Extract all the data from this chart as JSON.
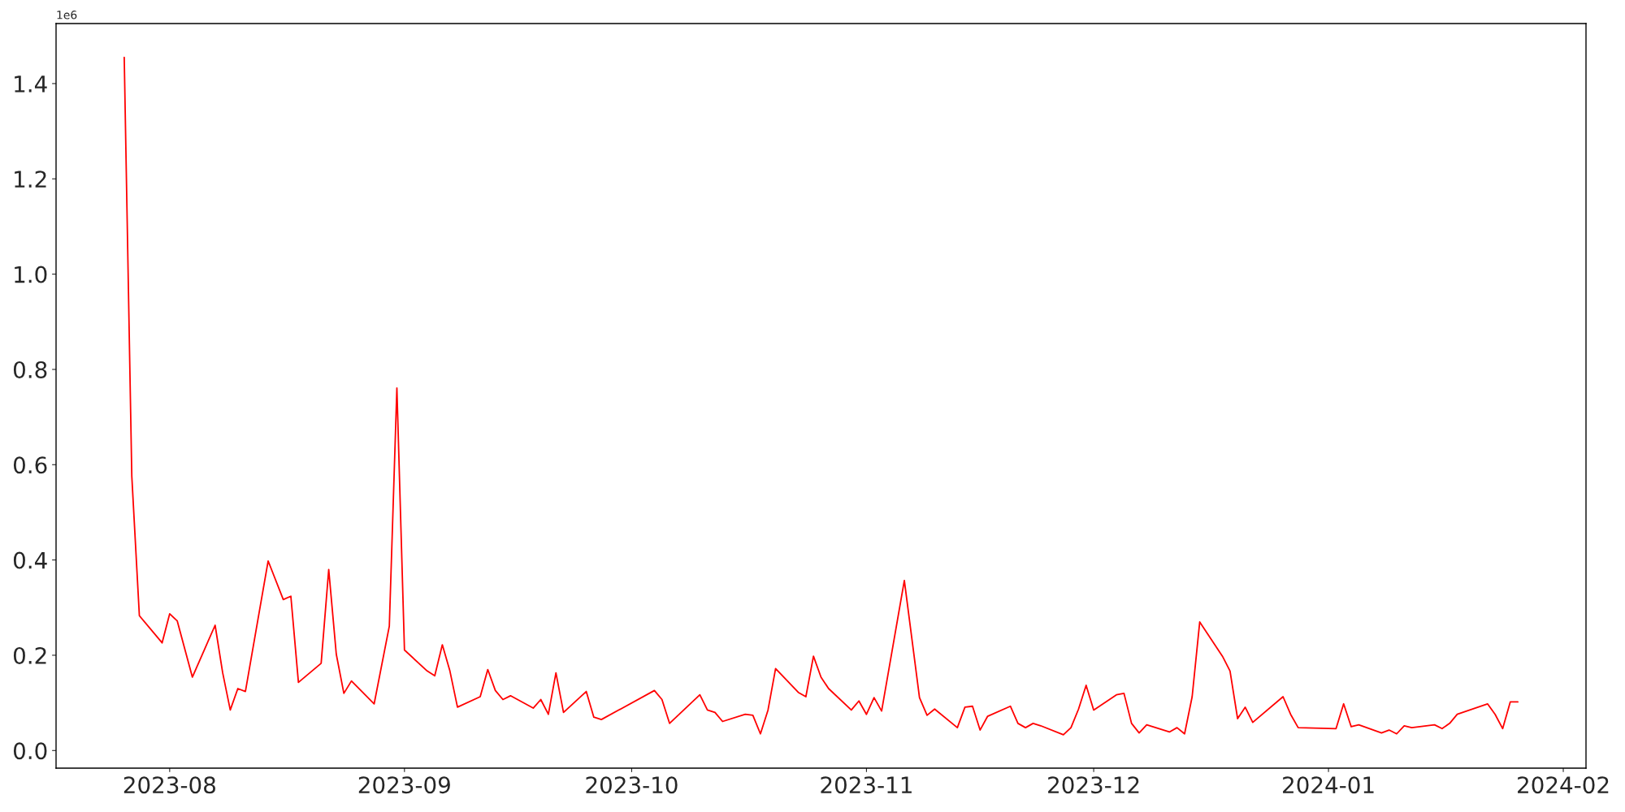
{
  "chart_data": {
    "type": "line",
    "annotations": [
      "1e6"
    ],
    "x": [
      "2023-07-26",
      "2023-07-27",
      "2023-07-28",
      "2023-07-31",
      "2023-08-01",
      "2023-08-02",
      "2023-08-04",
      "2023-08-07",
      "2023-08-08",
      "2023-08-09",
      "2023-08-10",
      "2023-08-11",
      "2023-08-14",
      "2023-08-16",
      "2023-08-17",
      "2023-08-18",
      "2023-08-21",
      "2023-08-22",
      "2023-08-23",
      "2023-08-24",
      "2023-08-25",
      "2023-08-28",
      "2023-08-30",
      "2023-08-31",
      "2023-09-01",
      "2023-09-04",
      "2023-09-05",
      "2023-09-06",
      "2023-09-07",
      "2023-09-08",
      "2023-09-11",
      "2023-09-12",
      "2023-09-13",
      "2023-09-14",
      "2023-09-15",
      "2023-09-18",
      "2023-09-19",
      "2023-09-20",
      "2023-09-21",
      "2023-09-22",
      "2023-09-25",
      "2023-09-26",
      "2023-09-27",
      "2023-10-04",
      "2023-10-05",
      "2023-10-06",
      "2023-10-10",
      "2023-10-11",
      "2023-10-12",
      "2023-10-13",
      "2023-10-16",
      "2023-10-17",
      "2023-10-18",
      "2023-10-19",
      "2023-10-20",
      "2023-10-23",
      "2023-10-24",
      "2023-10-25",
      "2023-10-26",
      "2023-10-27",
      "2023-10-30",
      "2023-10-31",
      "2023-11-01",
      "2023-11-02",
      "2023-11-03",
      "2023-11-06",
      "2023-11-08",
      "2023-11-09",
      "2023-11-10",
      "2023-11-13",
      "2023-11-14",
      "2023-11-15",
      "2023-11-16",
      "2023-11-17",
      "2023-11-20",
      "2023-11-21",
      "2023-11-22",
      "2023-11-23",
      "2023-11-24",
      "2023-11-27",
      "2023-11-28",
      "2023-11-29",
      "2023-11-30",
      "2023-12-01",
      "2023-12-04",
      "2023-12-05",
      "2023-12-06",
      "2023-12-07",
      "2023-12-08",
      "2023-12-11",
      "2023-12-12",
      "2023-12-13",
      "2023-12-14",
      "2023-12-15",
      "2023-12-18",
      "2023-12-19",
      "2023-12-20",
      "2023-12-21",
      "2023-12-22",
      "2023-12-26",
      "2023-12-27",
      "2023-12-28",
      "2024-01-02",
      "2024-01-03",
      "2024-01-04",
      "2024-01-05",
      "2024-01-08",
      "2024-01-09",
      "2024-01-10",
      "2024-01-11",
      "2024-01-12",
      "2024-01-15",
      "2024-01-16",
      "2024-01-17",
      "2024-01-18",
      "2024-01-22",
      "2024-01-23",
      "2024-01-24",
      "2024-01-25",
      "2024-01-26"
    ],
    "series": [
      {
        "color": "#ff0000",
        "values": [
          1.455,
          0.576,
          0.283,
          0.226,
          0.287,
          0.272,
          0.154,
          0.263,
          0.163,
          0.085,
          0.13,
          0.124,
          0.398,
          0.317,
          0.324,
          0.143,
          0.183,
          0.38,
          0.202,
          0.12,
          0.146,
          0.098,
          0.261,
          0.761,
          0.211,
          0.167,
          0.157,
          0.222,
          0.167,
          0.091,
          0.113,
          0.17,
          0.126,
          0.107,
          0.115,
          0.089,
          0.107,
          0.076,
          0.163,
          0.08,
          0.124,
          0.07,
          0.065,
          0.126,
          0.107,
          0.057,
          0.117,
          0.085,
          0.08,
          0.061,
          0.076,
          0.074,
          0.035,
          0.085,
          0.172,
          0.122,
          0.113,
          0.198,
          0.154,
          0.13,
          0.085,
          0.104,
          0.076,
          0.111,
          0.083,
          0.357,
          0.111,
          0.074,
          0.087,
          0.048,
          0.091,
          0.093,
          0.043,
          0.072,
          0.093,
          0.057,
          0.048,
          0.057,
          0.052,
          0.033,
          0.048,
          0.087,
          0.137,
          0.085,
          0.117,
          0.12,
          0.057,
          0.037,
          0.054,
          0.039,
          0.048,
          0.035,
          0.113,
          0.27,
          0.198,
          0.167,
          0.067,
          0.091,
          0.059,
          0.113,
          0.076,
          0.048,
          0.046,
          0.098,
          0.05,
          0.054,
          0.037,
          0.043,
          0.035,
          0.052,
          0.048,
          0.054,
          0.046,
          0.057,
          0.076,
          0.098,
          0.076,
          0.046,
          0.102,
          0.102
        ]
      }
    ],
    "xlim": [
      "2023-07-17",
      "2024-02-04"
    ],
    "xticks": [
      {
        "value": "2023-08-01",
        "label": "2023-08"
      },
      {
        "value": "2023-09-01",
        "label": "2023-09"
      },
      {
        "value": "2023-10-01",
        "label": "2023-10"
      },
      {
        "value": "2023-11-01",
        "label": "2023-11"
      },
      {
        "value": "2023-12-01",
        "label": "2023-12"
      },
      {
        "value": "2024-01-01",
        "label": "2024-01"
      },
      {
        "value": "2024-02-01",
        "label": "2024-02"
      }
    ],
    "ylim": [
      -0.037,
      1.526
    ],
    "yticks": [
      {
        "value": 0,
        "label": "0.0"
      },
      0.2,
      0.4,
      0.6,
      0.8,
      {
        "value": 1,
        "label": "1.0"
      },
      1.2,
      1.4
    ],
    "grid": false,
    "line_style": "solid",
    "marker": "none"
  }
}
